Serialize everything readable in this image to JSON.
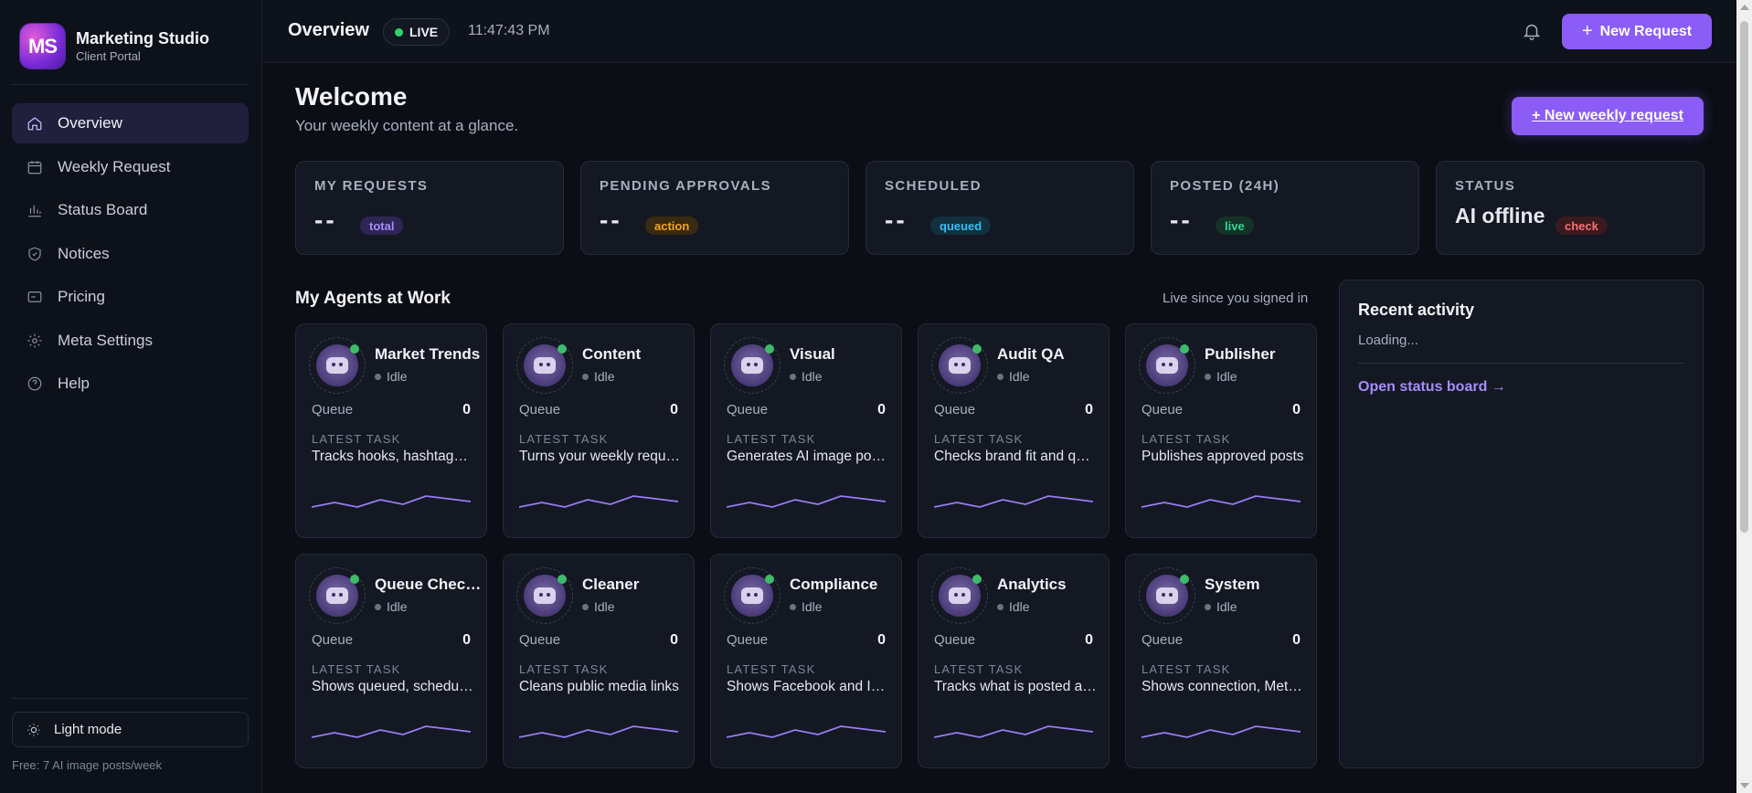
{
  "brand": {
    "logo_text": "MS",
    "title": "Marketing Studio",
    "subtitle": "Client Portal"
  },
  "sidebar": {
    "items": [
      {
        "label": "Overview",
        "icon": "home-icon",
        "active": true
      },
      {
        "label": "Weekly Request",
        "icon": "calendar-icon"
      },
      {
        "label": "Status Board",
        "icon": "bar-chart-icon"
      },
      {
        "label": "Notices",
        "icon": "shield-icon"
      },
      {
        "label": "Pricing",
        "icon": "card-icon"
      },
      {
        "label": "Meta Settings",
        "icon": "gear-icon"
      },
      {
        "label": "Help",
        "icon": "help-circle-icon"
      }
    ],
    "light_mode_label": "Light mode",
    "plan_note": "Free: 7 AI image posts/week"
  },
  "topbar": {
    "title": "Overview",
    "live_label": "LIVE",
    "clock": "11:47:43 PM",
    "new_request_label": "New Request"
  },
  "welcome": {
    "title": "Welcome",
    "subtitle": "Your weekly content at a glance.",
    "weekly_button": "+ New weekly request"
  },
  "stats": [
    {
      "label": "MY REQUESTS",
      "value": "--",
      "badge": "total",
      "badge_color": "#a78bfa",
      "badge_bg": "#2e2554"
    },
    {
      "label": "PENDING APPROVALS",
      "value": "--",
      "badge": "action",
      "badge_color": "#f5a524",
      "badge_bg": "#3a2a12"
    },
    {
      "label": "SCHEDULED",
      "value": "--",
      "badge": "queued",
      "badge_color": "#38bdf8",
      "badge_bg": "#12303d"
    },
    {
      "label": "POSTED (24H)",
      "value": "--",
      "badge": "live",
      "badge_color": "#34d399",
      "badge_bg": "#123326"
    },
    {
      "label": "STATUS",
      "value": "AI offline",
      "badge": "check",
      "badge_color": "#f87171",
      "badge_bg": "#3a1a1f"
    }
  ],
  "agents_section": {
    "title": "My Agents at Work",
    "subtitle": "Live since you signed in"
  },
  "agents": [
    {
      "name": "Market Trends",
      "status": "Idle",
      "queue_label": "Queue",
      "queue": "0",
      "latest_label": "LATEST TASK",
      "latest": "Tracks hooks, hashtags and trends"
    },
    {
      "name": "Content",
      "status": "Idle",
      "queue_label": "Queue",
      "queue": "0",
      "latest_label": "LATEST TASK",
      "latest": "Turns your weekly request into posts"
    },
    {
      "name": "Visual",
      "status": "Idle",
      "queue_label": "Queue",
      "queue": "0",
      "latest_label": "LATEST TASK",
      "latest": "Generates AI image posts"
    },
    {
      "name": "Audit QA",
      "status": "Idle",
      "queue_label": "Queue",
      "queue": "0",
      "latest_label": "LATEST TASK",
      "latest": "Checks brand fit and quality"
    },
    {
      "name": "Publisher",
      "status": "Idle",
      "queue_label": "Queue",
      "queue": "0",
      "latest_label": "LATEST TASK",
      "latest": "Publishes approved posts"
    },
    {
      "name": "Queue Checker",
      "status": "Idle",
      "queue_label": "Queue",
      "queue": "0",
      "latest_label": "LATEST TASK",
      "latest": "Shows queued, scheduled posts"
    },
    {
      "name": "Cleaner",
      "status": "Idle",
      "queue_label": "Queue",
      "queue": "0",
      "latest_label": "LATEST TASK",
      "latest": "Cleans public media links"
    },
    {
      "name": "Compliance",
      "status": "Idle",
      "queue_label": "Queue",
      "queue": "0",
      "latest_label": "LATEST TASK",
      "latest": "Shows Facebook and Instagram rules"
    },
    {
      "name": "Analytics",
      "status": "Idle",
      "queue_label": "Queue",
      "queue": "0",
      "latest_label": "LATEST TASK",
      "latest": "Tracks what is posted and results"
    },
    {
      "name": "System",
      "status": "Idle",
      "queue_label": "Queue",
      "queue": "0",
      "latest_label": "LATEST TASK",
      "latest": "Shows connection, Meta status"
    }
  ],
  "activity": {
    "title": "Recent activity",
    "loading": "Loading...",
    "link": "Open status board →"
  }
}
